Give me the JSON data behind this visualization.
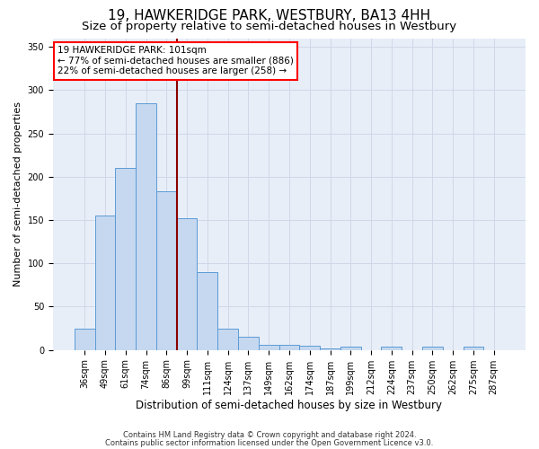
{
  "title": "19, HAWKERIDGE PARK, WESTBURY, BA13 4HH",
  "subtitle": "Size of property relative to semi-detached houses in Westbury",
  "xlabel": "Distribution of semi-detached houses by size in Westbury",
  "ylabel": "Number of semi-detached properties",
  "footer1": "Contains HM Land Registry data © Crown copyright and database right 2024.",
  "footer2": "Contains public sector information licensed under the Open Government Licence v3.0.",
  "bar_labels": [
    "36sqm",
    "49sqm",
    "61sqm",
    "74sqm",
    "86sqm",
    "99sqm",
    "111sqm",
    "124sqm",
    "137sqm",
    "149sqm",
    "162sqm",
    "174sqm",
    "187sqm",
    "199sqm",
    "212sqm",
    "224sqm",
    "237sqm",
    "250sqm",
    "262sqm",
    "275sqm",
    "287sqm"
  ],
  "bar_values": [
    25,
    155,
    210,
    285,
    183,
    152,
    90,
    25,
    15,
    6,
    6,
    5,
    2,
    4,
    0,
    4,
    0,
    4,
    0,
    4,
    0
  ],
  "bar_color": "#c5d8f0",
  "bar_edge_color": "#5b9bd5",
  "property_line_x": 4.5,
  "property_line_color": "#8b0000",
  "annotation_text": "19 HAWKERIDGE PARK: 101sqm\n← 77% of semi-detached houses are smaller (886)\n22% of semi-detached houses are larger (258) →",
  "annotation_box_color": "white",
  "annotation_box_edge": "red",
  "ylim": [
    0,
    360
  ],
  "yticks": [
    0,
    50,
    100,
    150,
    200,
    250,
    300,
    350
  ],
  "grid_color": "#d0d8e8",
  "bg_color": "#e8eef8",
  "title_fontsize": 11,
  "subtitle_fontsize": 9.5,
  "xlabel_fontsize": 8.5,
  "ylabel_fontsize": 8,
  "annotation_fontsize": 7.5,
  "tick_fontsize": 7
}
